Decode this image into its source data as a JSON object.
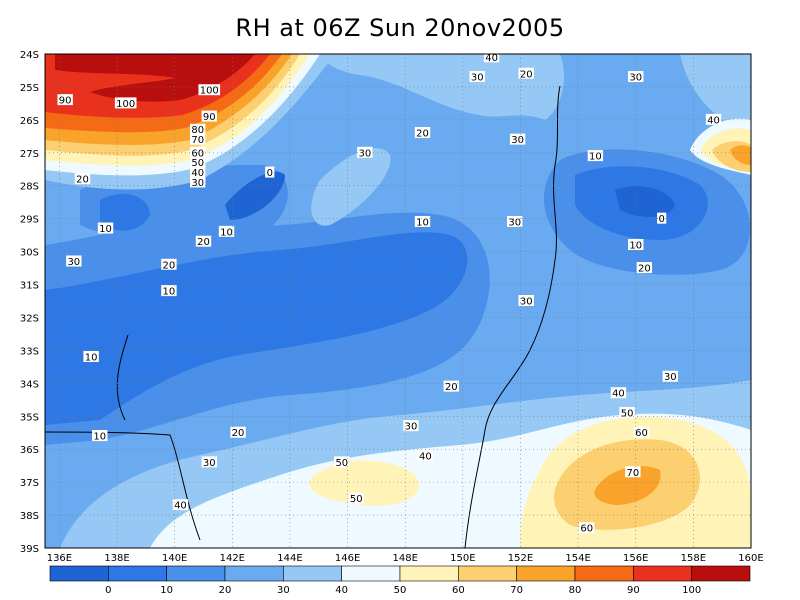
{
  "title": "RH at 06Z Sun 20nov2005",
  "map": {
    "lat_labels": [
      "24S",
      "25S",
      "26S",
      "27S",
      "28S",
      "29S",
      "30S",
      "31S",
      "32S",
      "33S",
      "34S",
      "35S",
      "36S",
      "37S",
      "38S",
      "39S"
    ],
    "lon_labels": [
      "136E",
      "138E",
      "140E",
      "142E",
      "144E",
      "146E",
      "148E",
      "150E",
      "152E",
      "154E",
      "156E",
      "158E",
      "160E"
    ],
    "lon_range": [
      135.5,
      160
    ],
    "lat_range": [
      -39,
      -24
    ],
    "grid": "dotted"
  },
  "colorbar": {
    "labels": [
      "0",
      "10",
      "20",
      "30",
      "40",
      "50",
      "60",
      "70",
      "80",
      "90",
      "100"
    ],
    "colors": [
      "#1e64d2",
      "#2e78e6",
      "#4a90ea",
      "#6aaaf0",
      "#96c8f5",
      "#eefaff",
      "#fff3b8",
      "#fcd070",
      "#f9a32a",
      "#f56a14",
      "#e8321e",
      "#b90e0e"
    ]
  },
  "contour_labels": [
    {
      "text": "40",
      "lon": 151.0,
      "lat": -24.1
    },
    {
      "text": "30",
      "lon": 150.5,
      "lat": -24.7
    },
    {
      "text": "20",
      "lon": 152.2,
      "lat": -24.6
    },
    {
      "text": "30",
      "lon": 156.0,
      "lat": -24.7
    },
    {
      "text": "90",
      "lon": 136.2,
      "lat": -25.4
    },
    {
      "text": "100",
      "lon": 138.3,
      "lat": -25.5
    },
    {
      "text": "100",
      "lon": 141.2,
      "lat": -25.1
    },
    {
      "text": "90",
      "lon": 141.2,
      "lat": -25.9
    },
    {
      "text": "80",
      "lon": 140.8,
      "lat": -26.3
    },
    {
      "text": "70",
      "lon": 140.8,
      "lat": -26.6
    },
    {
      "text": "60",
      "lon": 140.8,
      "lat": -27.0
    },
    {
      "text": "50",
      "lon": 140.8,
      "lat": -27.3
    },
    {
      "text": "40",
      "lon": 140.8,
      "lat": -27.6
    },
    {
      "text": "30",
      "lon": 140.8,
      "lat": -27.9
    },
    {
      "text": "20",
      "lon": 136.8,
      "lat": -27.8
    },
    {
      "text": "10",
      "lon": 137.6,
      "lat": -29.3
    },
    {
      "text": "0",
      "lon": 143.3,
      "lat": -27.6
    },
    {
      "text": "10",
      "lon": 141.8,
      "lat": -29.4
    },
    {
      "text": "20",
      "lon": 141.0,
      "lat": -29.7
    },
    {
      "text": "30",
      "lon": 146.6,
      "lat": -27.0
    },
    {
      "text": "20",
      "lon": 148.6,
      "lat": -26.4
    },
    {
      "text": "10",
      "lon": 148.6,
      "lat": -29.1
    },
    {
      "text": "30",
      "lon": 151.9,
      "lat": -26.6
    },
    {
      "text": "30",
      "lon": 151.8,
      "lat": -29.1
    },
    {
      "text": "30",
      "lon": 152.2,
      "lat": -31.5
    },
    {
      "text": "10",
      "lon": 154.6,
      "lat": -27.1
    },
    {
      "text": "0",
      "lon": 156.9,
      "lat": -29.0
    },
    {
      "text": "10",
      "lon": 156.0,
      "lat": -29.8
    },
    {
      "text": "20",
      "lon": 156.3,
      "lat": -30.5
    },
    {
      "text": "40",
      "lon": 158.7,
      "lat": -26.0
    },
    {
      "text": "30",
      "lon": 136.5,
      "lat": -30.3
    },
    {
      "text": "20",
      "lon": 139.8,
      "lat": -30.4
    },
    {
      "text": "10",
      "lon": 139.8,
      "lat": -31.2
    },
    {
      "text": "10",
      "lon": 137.1,
      "lat": -33.2
    },
    {
      "text": "10",
      "lon": 137.4,
      "lat": -35.6
    },
    {
      "text": "20",
      "lon": 142.2,
      "lat": -35.5
    },
    {
      "text": "30",
      "lon": 141.2,
      "lat": -36.4
    },
    {
      "text": "20",
      "lon": 149.6,
      "lat": -34.1
    },
    {
      "text": "30",
      "lon": 148.2,
      "lat": -35.3
    },
    {
      "text": "30",
      "lon": 157.2,
      "lat": -33.8
    },
    {
      "text": "40",
      "lon": 155.4,
      "lat": -34.3
    },
    {
      "text": "50",
      "lon": 155.7,
      "lat": -34.9
    },
    {
      "text": "60",
      "lon": 156.2,
      "lat": -35.5
    },
    {
      "text": "70",
      "lon": 155.9,
      "lat": -36.7
    },
    {
      "text": "40",
      "lon": 148.7,
      "lat": -36.2
    },
    {
      "text": "50",
      "lon": 145.8,
      "lat": -36.4
    },
    {
      "text": "50",
      "lon": 146.3,
      "lat": -37.5
    },
    {
      "text": "40",
      "lon": 140.2,
      "lat": -37.7
    },
    {
      "text": "60",
      "lon": 154.3,
      "lat": -38.4
    }
  ]
}
